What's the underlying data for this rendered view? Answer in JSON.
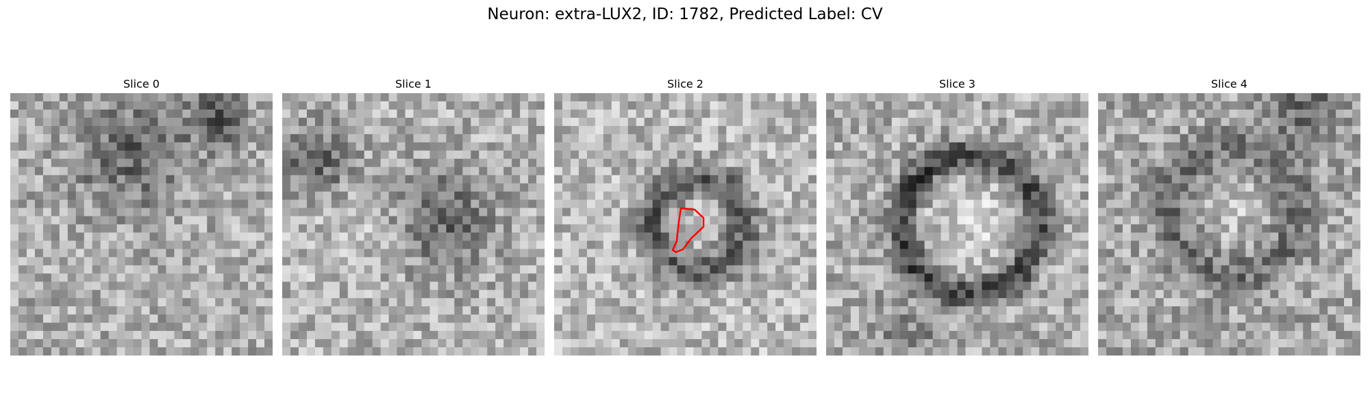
{
  "figure": {
    "title": "Neuron: extra-LUX2, ID: 1782, Predicted Label: CV",
    "slices": [
      {
        "title": "Slice 0",
        "seed": 11,
        "pattern": "band-top"
      },
      {
        "title": "Slice 1",
        "seed": 23,
        "pattern": "band-top-right"
      },
      {
        "title": "Slice 2",
        "seed": 37,
        "pattern": "ring-small",
        "outline_color": "#ff0000"
      },
      {
        "title": "Slice 3",
        "seed": 51,
        "pattern": "ring-large"
      },
      {
        "title": "Slice 4",
        "seed": 67,
        "pattern": "ring-faint"
      }
    ]
  }
}
